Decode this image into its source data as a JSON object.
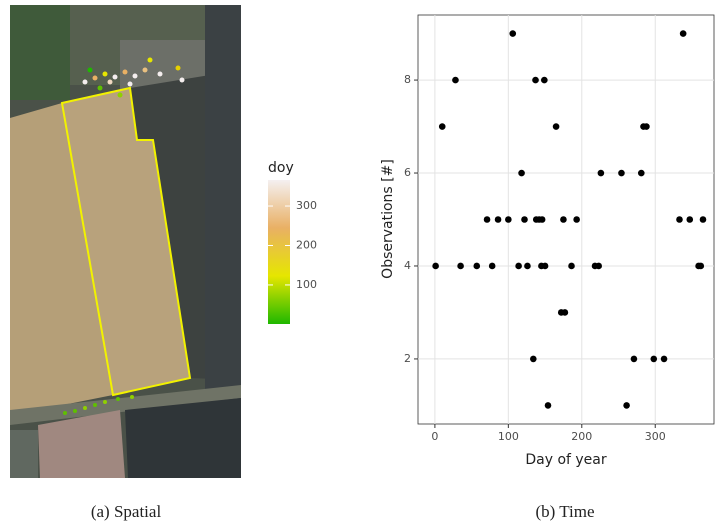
{
  "chart_data": [
    {
      "type": "map",
      "caption": "(a) Spatial",
      "legend_title": "doy",
      "colorbar_lim": [
        1,
        366
      ],
      "colorbar_ticks": [
        100,
        200,
        300
      ],
      "colors": [
        "#1fb800",
        "#e6e600",
        "#e9b064",
        "#f4f0f0"
      ]
    },
    {
      "type": "scatter",
      "caption": "(b) Time",
      "xlabel": "Day of year",
      "ylabel": "Observations [#]",
      "color": "#000000",
      "grid": true,
      "xlim": [
        -23,
        380
      ],
      "ylim": [
        0.6,
        9.4
      ],
      "xticks": [
        0,
        100,
        200,
        300
      ],
      "yticks": [
        2,
        4,
        6,
        8
      ],
      "x": [
        1,
        10,
        28,
        35,
        57,
        71,
        78,
        86,
        100,
        106,
        114,
        118,
        122,
        126,
        134,
        137,
        138,
        142,
        146,
        145,
        150,
        149,
        154,
        165,
        172,
        175,
        177,
        186,
        193,
        218,
        223,
        226,
        254,
        261,
        271,
        281,
        284,
        288,
        298,
        312,
        333,
        338,
        347,
        359,
        362,
        365
      ],
      "y": [
        4,
        7,
        8,
        4,
        4,
        5,
        4,
        5,
        5,
        9,
        4,
        6,
        5,
        4,
        2,
        8,
        5,
        5,
        5,
        4,
        4,
        8,
        1,
        7,
        3,
        5,
        3,
        4,
        5,
        4,
        4,
        6,
        6,
        1,
        2,
        6,
        7,
        7,
        2,
        2,
        5,
        9,
        5,
        4,
        4,
        5
      ]
    }
  ]
}
